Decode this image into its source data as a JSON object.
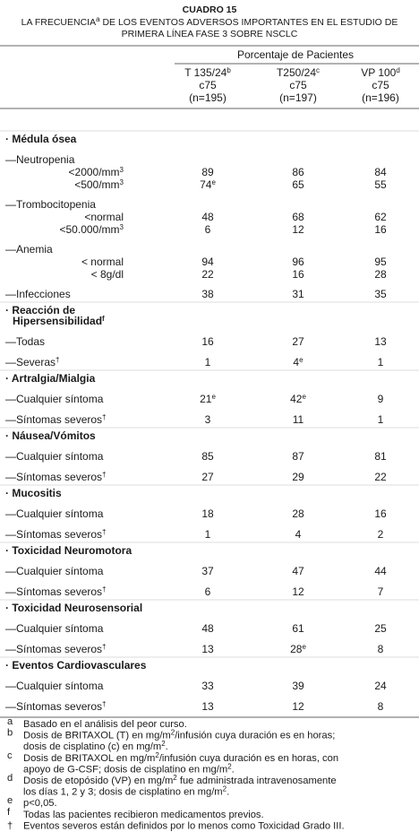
{
  "title": "CUADRO 15",
  "subtitle_lines": [
    [
      {
        "text": "LA FRECUENCIA"
      },
      {
        "sup": "a"
      },
      {
        "text": " DE LOS EVENTOS ADVERSOS IMPORTANTES EN EL ESTUDIO DE"
      }
    ],
    [
      {
        "text": "PRIMERA LÍNEA FASE 3 SOBRE NSCLC"
      }
    ]
  ],
  "table": {
    "group_header": "Porcentaje de Pacientes",
    "columns": [
      [
        [
          {
            "text": "T 135/24"
          },
          {
            "sup": "b"
          }
        ],
        [
          {
            "text": "c75"
          }
        ],
        [
          {
            "text": "(n=195)"
          }
        ]
      ],
      [
        [
          {
            "text": "T250/24"
          },
          {
            "sup": "c"
          }
        ],
        [
          {
            "text": "c75"
          }
        ],
        [
          {
            "text": "(n=197)"
          }
        ]
      ],
      [
        [
          {
            "text": "VP 100"
          },
          {
            "sup": "d"
          }
        ],
        [
          {
            "text": "c75"
          }
        ],
        [
          {
            "text": "(n=196)"
          }
        ]
      ]
    ],
    "sections": [
      {
        "title_lines": [
          [
            {
              "text": "· Médula ósea"
            }
          ]
        ],
        "rows": [
          {
            "label": [
              {
                "text": "—Neutropenia"
              }
            ]
          },
          {
            "label": [
              {
                "text": "<2000/mm"
              },
              {
                "sup": "3"
              }
            ],
            "values": [
              89,
              86,
              84
            ]
          },
          {
            "label": [
              {
                "text": "<500/mm"
              },
              {
                "sup": "3"
              }
            ],
            "values": [
              {
                "value": 74,
                "sup": "e"
              },
              65,
              55
            ]
          },
          {
            "label": [
              {
                "text": "—Trombocitopenia"
              }
            ]
          },
          {
            "label": [
              {
                "text": "<normal"
              }
            ],
            "values": [
              48,
              68,
              62
            ]
          },
          {
            "label": [
              {
                "text": "<50.000/mm"
              },
              {
                "sup": "3"
              }
            ],
            "values": [
              6,
              12,
              16
            ]
          },
          {
            "label": [
              {
                "text": "—Anemia"
              }
            ]
          },
          {
            "label": [
              {
                "text": "<  normal"
              }
            ],
            "values": [
              94,
              96,
              95
            ]
          },
          {
            "label": [
              {
                "text": "<  8g/dl"
              }
            ],
            "values": [
              22,
              16,
              28
            ]
          },
          {
            "label": [
              {
                "text": "—Infecciones"
              }
            ],
            "values": [
              38,
              31,
              35
            ]
          }
        ]
      },
      {
        "title_lines": [
          [
            {
              "text": "· Reacción de"
            }
          ],
          [
            {
              "text": "Hipersensibilidad"
            },
            {
              "sup": "f"
            }
          ]
        ],
        "rows": [
          {
            "label": [
              {
                "text": "—Todas"
              }
            ],
            "values": [
              16,
              27,
              13
            ]
          },
          {
            "label": [
              {
                "text": "—Severas"
              },
              {
                "sup": "†"
              }
            ],
            "values": [
              1,
              {
                "value": 4,
                "sup": "e"
              },
              1
            ]
          }
        ]
      },
      {
        "title_lines": [
          [
            {
              "text": "· Artralgia/Mialgia"
            }
          ]
        ],
        "rows": [
          {
            "label": [
              {
                "text": "—Cualquier síntoma"
              }
            ],
            "values": [
              {
                "value": 21,
                "sup": "e"
              },
              {
                "value": 42,
                "sup": "e"
              },
              9
            ]
          },
          {
            "label": [
              {
                "text": "—Síntomas severos"
              },
              {
                "sup": "†"
              }
            ],
            "values": [
              3,
              11,
              1
            ]
          }
        ]
      },
      {
        "title_lines": [
          [
            {
              "text": "· Náusea/Vómitos"
            }
          ]
        ],
        "rows": [
          {
            "label": [
              {
                "text": "—Cualquier síntoma"
              }
            ],
            "values": [
              85,
              87,
              81
            ]
          },
          {
            "label": [
              {
                "text": "—Síntomas severos"
              },
              {
                "sup": "†"
              }
            ],
            "values": [
              27,
              29,
              22
            ]
          }
        ]
      },
      {
        "title_lines": [
          [
            {
              "text": "· Mucositis"
            }
          ]
        ],
        "rows": [
          {
            "label": [
              {
                "text": "—Cualquier síntoma"
              }
            ],
            "values": [
              18,
              28,
              16
            ]
          },
          {
            "label": [
              {
                "text": "—Síntomas severos"
              },
              {
                "sup": "†"
              }
            ],
            "values": [
              1,
              4,
              2
            ]
          }
        ]
      },
      {
        "title_lines": [
          [
            {
              "text": "· Toxicidad Neuromotora"
            }
          ]
        ],
        "rows": [
          {
            "label": [
              {
                "text": "—Cualquier síntoma"
              }
            ],
            "values": [
              37,
              47,
              44
            ]
          },
          {
            "label": [
              {
                "text": "—Síntomas severos"
              },
              {
                "sup": "†"
              }
            ],
            "values": [
              6,
              12,
              7
            ]
          }
        ]
      },
      {
        "title_lines": [
          [
            {
              "text": "· Toxicidad Neurosensorial"
            }
          ]
        ],
        "rows": [
          {
            "label": [
              {
                "text": "—Cualquier síntoma"
              }
            ],
            "values": [
              48,
              61,
              25
            ]
          },
          {
            "label": [
              {
                "text": "—Síntomas severos"
              },
              {
                "sup": "†"
              }
            ],
            "values": [
              13,
              {
                "value": 28,
                "sup": "e"
              },
              8
            ]
          }
        ]
      },
      {
        "title_lines": [
          [
            {
              "text": "· Eventos Cardiovasculares"
            }
          ]
        ],
        "rows": [
          {
            "label": [
              {
                "text": "—Cualquier síntoma"
              }
            ],
            "values": [
              33,
              39,
              24
            ]
          },
          {
            "label": [
              {
                "text": "—Síntomas severos"
              },
              {
                "sup": "†"
              }
            ],
            "values": [
              13,
              12,
              8
            ]
          }
        ]
      }
    ]
  },
  "footnotes": [
    {
      "mark": "a",
      "lines": [
        [
          {
            "text": "Basado en el análisis del peor curso."
          }
        ]
      ]
    },
    {
      "mark": "b",
      "lines": [
        [
          {
            "text": "Dosis de BRITAXOL (T) en mg/m"
          },
          {
            "sup": "2"
          },
          {
            "text": "/infusión cuya duración es en horas;"
          }
        ],
        [
          {
            "text": "dosis de cisplatino (c) en mg/m"
          },
          {
            "sup": "2"
          },
          {
            "text": "."
          }
        ]
      ]
    },
    {
      "mark": "c",
      "lines": [
        [
          {
            "text": "Dosis de BRITAXOL en mg/m"
          },
          {
            "sup": "2"
          },
          {
            "text": "/infusión cuya duración es en horas, con"
          }
        ],
        [
          {
            "text": "apoyo de G-CSF; dosis de cisplatino en mg/m"
          },
          {
            "sup": "2"
          },
          {
            "text": "."
          }
        ]
      ]
    },
    {
      "mark": "d",
      "lines": [
        [
          {
            "text": "Dosis de etopósido (VP) en mg/m"
          },
          {
            "sup": "2"
          },
          {
            "text": " fue administrada intravenosamente"
          }
        ],
        [
          {
            "text": "los días 1, 2 y 3; dosis de cisplatino en mg/m"
          },
          {
            "sup": "2"
          },
          {
            "text": "."
          }
        ]
      ]
    },
    {
      "mark": "e",
      "lines": [
        [
          {
            "text": "p<0,05."
          }
        ]
      ]
    },
    {
      "mark": "f",
      "lines": [
        [
          {
            "text": "Todas las pacientes recibieron medicamentos previos."
          }
        ]
      ]
    },
    {
      "mark": "†",
      "lines": [
        [
          {
            "text": "Eventos severos están definidos por lo menos como Toxicidad Grado III."
          }
        ]
      ]
    }
  ]
}
